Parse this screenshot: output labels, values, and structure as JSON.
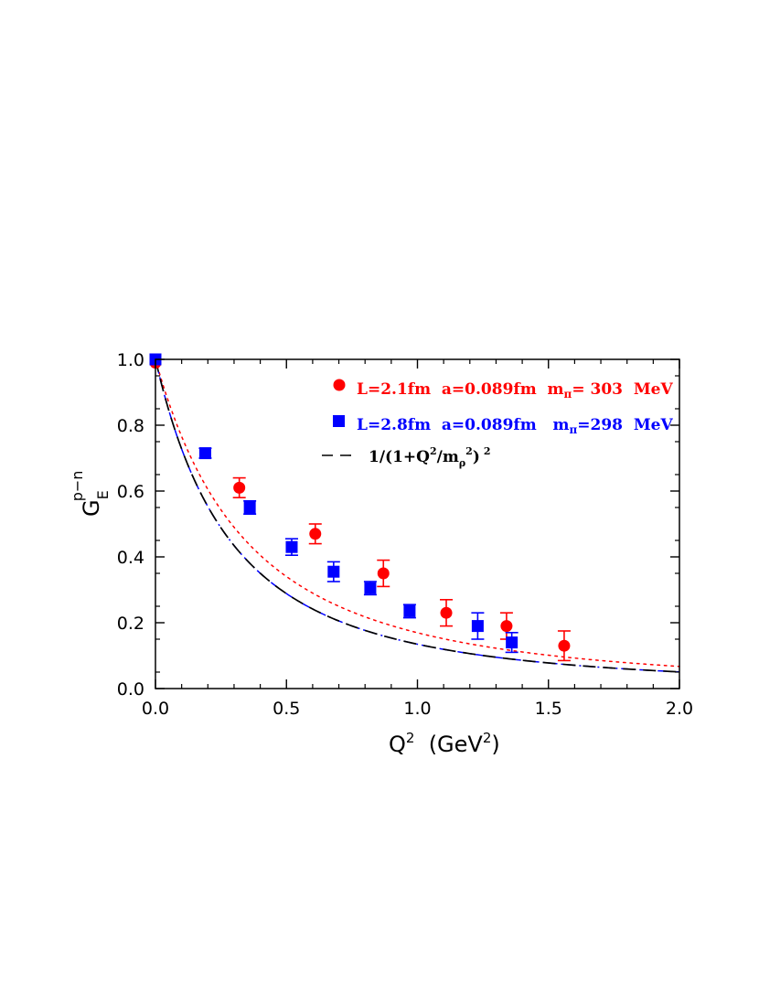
{
  "chart_data": {
    "type": "scatter",
    "xlim": [
      0.0,
      2.0
    ],
    "ylim": [
      0.0,
      1.0
    ],
    "xticks": [
      "0.0",
      "0.5",
      "1.0",
      "1.5",
      "2.0"
    ],
    "yticks": [
      "0.0",
      "0.2",
      "0.4",
      "0.6",
      "0.8",
      "1.0"
    ],
    "xlabel": {
      "base": "Q",
      "sup": "2",
      "mid": "  (GeV",
      "sup2": "2",
      "end": ")"
    },
    "ylabel": {
      "base": "G",
      "sub": "E",
      "sup": "p−n"
    },
    "legend_position": "top-right",
    "grid": false,
    "series": [
      {
        "name": "L=2.1fm  a=0.089fm  mπ= 303  MeV",
        "legend": {
          "pre": "L=2.1fm  a=0.089fm  m",
          "sub": "π",
          "post": "= 303  MeV"
        },
        "marker": "circle",
        "color": "#ff0000",
        "fit": "dotted",
        "fit_scale": 0.7,
        "x": [
          0.0,
          0.32,
          0.61,
          0.87,
          1.11,
          1.34,
          1.56
        ],
        "y": [
          0.99,
          0.61,
          0.47,
          0.35,
          0.23,
          0.19,
          0.13
        ],
        "err": [
          0.0,
          0.03,
          0.03,
          0.04,
          0.04,
          0.04,
          0.045
        ]
      },
      {
        "name": "L=2.8fm  a=0.089fm  mπ=298  MeV",
        "legend": {
          "pre": "L=2.8fm  a=0.089fm   m",
          "sub": "π",
          "post": "=298  MeV"
        },
        "marker": "square",
        "color": "#0000ff",
        "fit": "dashdot",
        "fit_scale": 0.58,
        "x": [
          0.0,
          0.19,
          0.36,
          0.52,
          0.68,
          0.82,
          0.97,
          1.23,
          1.36
        ],
        "y": [
          1.0,
          0.715,
          0.55,
          0.43,
          0.355,
          0.305,
          0.235,
          0.19,
          0.14
        ],
        "err": [
          0.0,
          0.015,
          0.02,
          0.025,
          0.03,
          0.02,
          0.02,
          0.04,
          0.03
        ]
      },
      {
        "name": "1/(1+Q2/mρ2)2",
        "legend": {
          "pre": "1/(1+Q",
          "sup1": "2",
          "mid": "/m",
          "sub": "ρ",
          "sup2": "2",
          "post": ")",
          "sup3": "2"
        },
        "marker": "none",
        "color": "#000000",
        "fit": "dashed",
        "fit_scale": 0.58
      }
    ]
  }
}
